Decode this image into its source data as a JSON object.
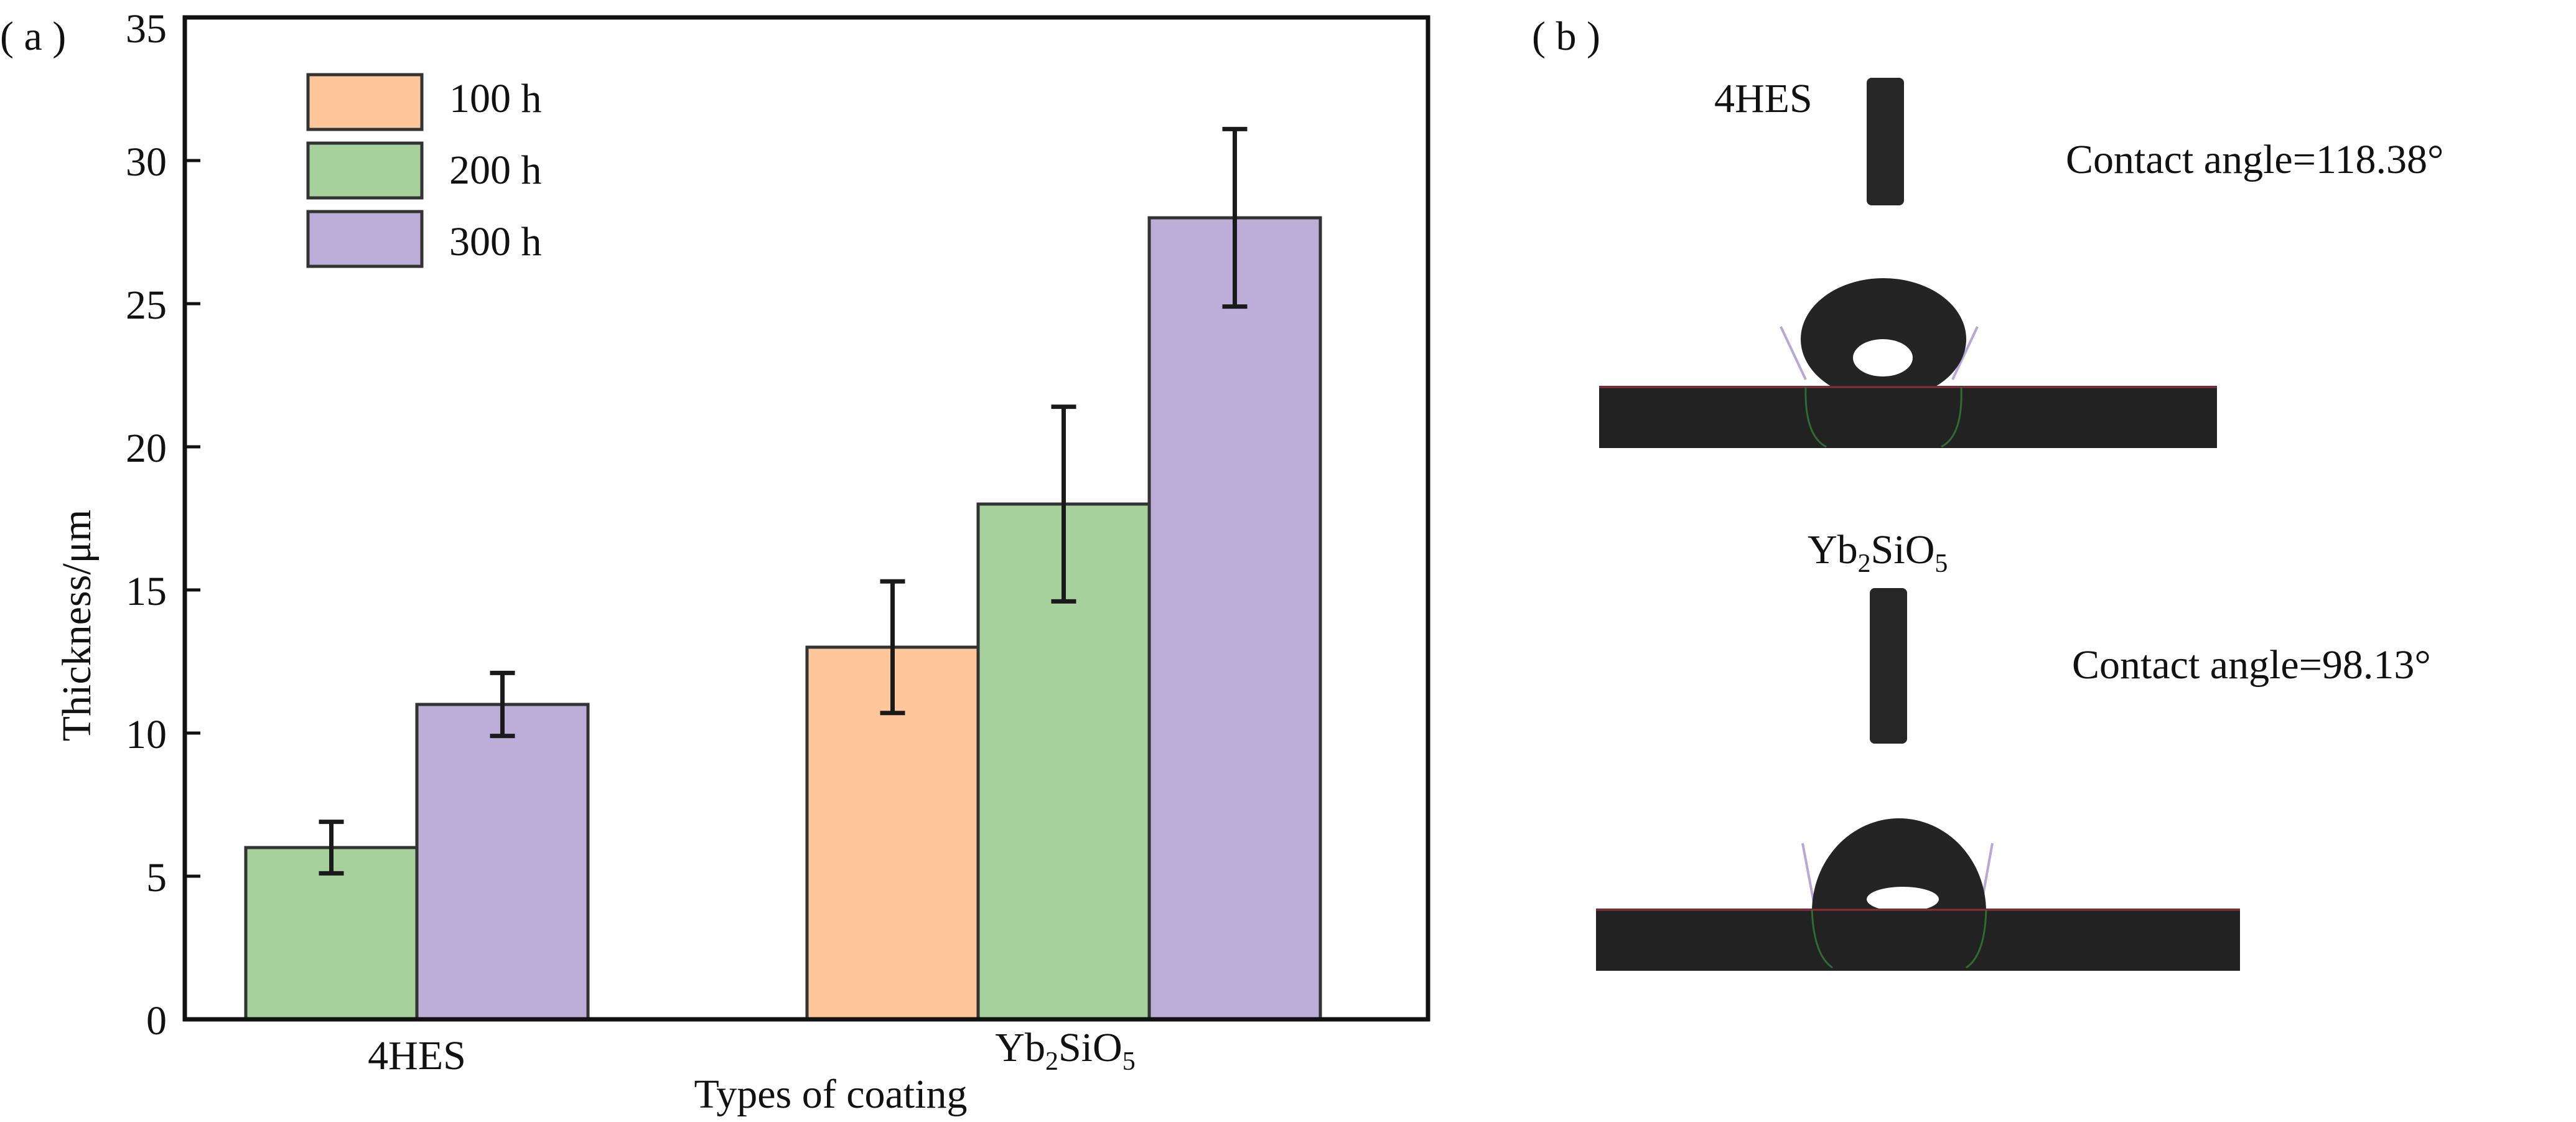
{
  "panel_a": {
    "label": "( a )"
  },
  "panel_b": {
    "label": "( b )",
    "sample1": {
      "name": "4HES",
      "annotation": "Contact angle=118.38°",
      "contact_angle_deg": 118.38
    },
    "sample2": {
      "name_main": "Yb",
      "name_sub1": "2",
      "name_mid": "SiO",
      "name_sub2": "5",
      "annotation": "Contact angle=98.13°",
      "contact_angle_deg": 98.13
    }
  },
  "chart_data": {
    "type": "bar",
    "xlabel": "Types of coating",
    "ylabel": "Thickness/μm",
    "ylim": [
      0,
      35
    ],
    "yticks": [
      0,
      5,
      10,
      15,
      20,
      25,
      30,
      35
    ],
    "grid": false,
    "legend_position": "top-left",
    "categories": [
      "4HES",
      "Yb2SiO5"
    ],
    "category_labels": [
      {
        "main": "4HES",
        "sub1": "",
        "mid": "",
        "sub2": ""
      },
      {
        "main": "Yb",
        "sub1": "2",
        "mid": "SiO",
        "sub2": "5"
      }
    ],
    "series": [
      {
        "name": "100 h",
        "color": "#fdc79b",
        "values": [
          null,
          13.0
        ],
        "errors": [
          null,
          2.3
        ]
      },
      {
        "name": "200 h",
        "color": "#a6d09c",
        "values": [
          6.0,
          18.0
        ],
        "errors": [
          0.9,
          3.4
        ]
      },
      {
        "name": "300 h",
        "color": "#bcaed8",
        "values": [
          11.0,
          28.0
        ],
        "errors": [
          1.1,
          3.1
        ]
      }
    ]
  }
}
